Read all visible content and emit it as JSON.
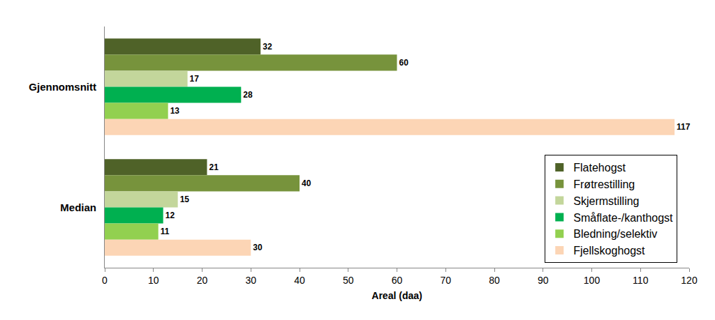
{
  "chart_data": {
    "type": "bar",
    "orientation": "horizontal",
    "categories": [
      "Gjennomsnitt",
      "Median"
    ],
    "series": [
      {
        "name": "Flatehogst",
        "color": "#4f6228",
        "values": [
          32,
          21
        ]
      },
      {
        "name": "Frøtrestilling",
        "color": "#77933c",
        "values": [
          60,
          40
        ]
      },
      {
        "name": "Skjermstilling",
        "color": "#c3d69b",
        "values": [
          17,
          15
        ]
      },
      {
        "name": "Småflate-/kanthogst",
        "color": "#00b050",
        "values": [
          28,
          12
        ]
      },
      {
        "name": "Bledning/selektiv",
        "color": "#92d050",
        "values": [
          13,
          11
        ]
      },
      {
        "name": "Fjellskoghogst",
        "color": "#fcd5b5",
        "values": [
          117,
          30
        ]
      }
    ],
    "x_label": "Areal (daa)",
    "xlim": [
      0,
      120
    ],
    "xticks": [
      0,
      10,
      20,
      30,
      40,
      50,
      60,
      70,
      80,
      90,
      100,
      110,
      120
    ],
    "grid": false,
    "legend": "lower right",
    "data_labels": true
  }
}
